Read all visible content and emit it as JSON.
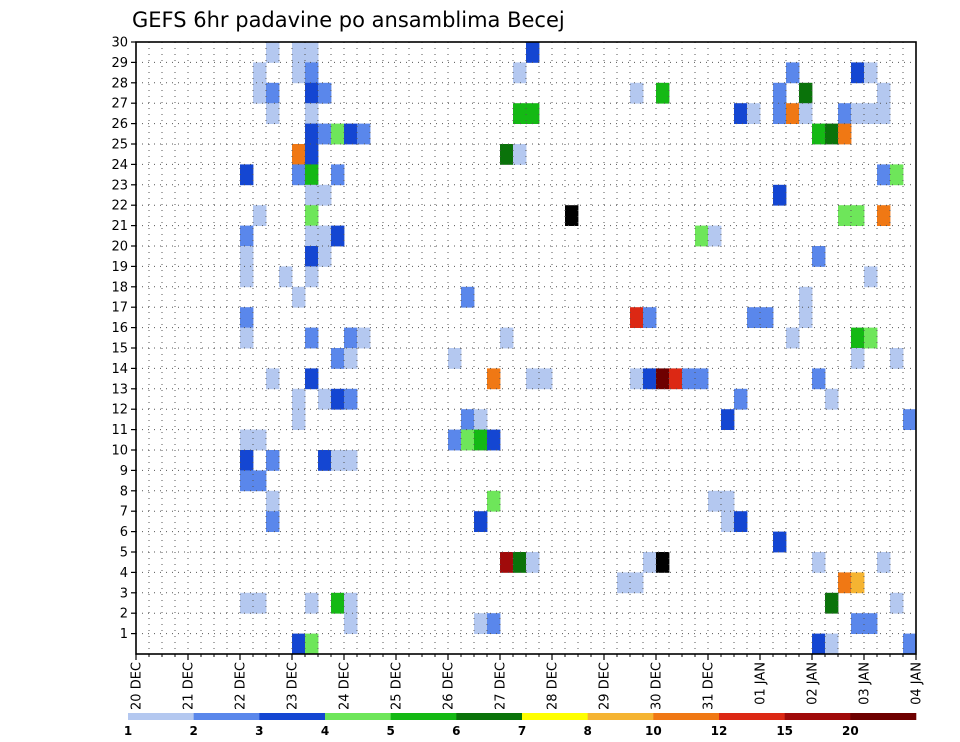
{
  "chart_data": {
    "type": "heatmap",
    "title": "GEFS 6hr padavine po ansamblima Becej",
    "x_tick_labels": [
      "20 DEC",
      "21 DEC",
      "22 DEC",
      "23 DEC",
      "24 DEC",
      "25 DEC",
      "26 DEC",
      "27 DEC",
      "28 DEC",
      "29 DEC",
      "30 DEC",
      "31 DEC",
      "01 JAN",
      "02 JAN",
      "03 JAN",
      "04 JAN"
    ],
    "y_tick_labels": [
      "1",
      "2",
      "3",
      "4",
      "5",
      "6",
      "7",
      "8",
      "9",
      "10",
      "11",
      "12",
      "13",
      "14",
      "15",
      "16",
      "17",
      "18",
      "19",
      "20",
      "21",
      "22",
      "23",
      "24",
      "25",
      "26",
      "27",
      "28",
      "29",
      "30"
    ],
    "xlim_steps": [
      0,
      60
    ],
    "ylim": [
      0,
      30
    ],
    "steps_per_day": 4,
    "grid": true,
    "legend": {
      "position": "bottom",
      "labels": [
        "1",
        "2",
        "3",
        "4",
        "5",
        "6",
        "7",
        "8",
        "10",
        "12",
        "15",
        "20"
      ],
      "colors": [
        "#b4c8f0",
        "#5a87eb",
        "#1446d2",
        "#6ee65a",
        "#14b914",
        "#0a730a",
        "#ffff00",
        "#f5b432",
        "#f07814",
        "#dc2814",
        "#a00a0a",
        "#6e0000"
      ]
    },
    "cells": [
      [
        10,
        30,
        1
      ],
      [
        12,
        30,
        1
      ],
      [
        13,
        30,
        1
      ],
      [
        30,
        30,
        3
      ],
      [
        9,
        29,
        1
      ],
      [
        12,
        29,
        1
      ],
      [
        13,
        29,
        2
      ],
      [
        29,
        29,
        1
      ],
      [
        50,
        29,
        2
      ],
      [
        55,
        29,
        3
      ],
      [
        56,
        29,
        1
      ],
      [
        9,
        28,
        1
      ],
      [
        10,
        28,
        2
      ],
      [
        13,
        28,
        3
      ],
      [
        14,
        28,
        2
      ],
      [
        38,
        28,
        1
      ],
      [
        40,
        28,
        5
      ],
      [
        49,
        28,
        2
      ],
      [
        51,
        28,
        6
      ],
      [
        57,
        28,
        1
      ],
      [
        10,
        27,
        1
      ],
      [
        13,
        27,
        1
      ],
      [
        29,
        27,
        5
      ],
      [
        30,
        27,
        5
      ],
      [
        46,
        27,
        3
      ],
      [
        47,
        27,
        1
      ],
      [
        49,
        27,
        2
      ],
      [
        50,
        27,
        9
      ],
      [
        51,
        27,
        1
      ],
      [
        54,
        27,
        2
      ],
      [
        55,
        27,
        1
      ],
      [
        56,
        27,
        1
      ],
      [
        57,
        27,
        1
      ],
      [
        13,
        26,
        3
      ],
      [
        14,
        26,
        2
      ],
      [
        15,
        26,
        4
      ],
      [
        16,
        26,
        3
      ],
      [
        17,
        26,
        2
      ],
      [
        52,
        26,
        5
      ],
      [
        53,
        26,
        6
      ],
      [
        54,
        26,
        9
      ],
      [
        12,
        25,
        9
      ],
      [
        13,
        25,
        3
      ],
      [
        28,
        25,
        6
      ],
      [
        29,
        25,
        1
      ],
      [
        8,
        24,
        3
      ],
      [
        12,
        24,
        2
      ],
      [
        13,
        24,
        5
      ],
      [
        15,
        24,
        2
      ],
      [
        57,
        24,
        2
      ],
      [
        58,
        24,
        4
      ],
      [
        13,
        23,
        1
      ],
      [
        14,
        23,
        1
      ],
      [
        49,
        23,
        3
      ],
      [
        9,
        22,
        1
      ],
      [
        13,
        22,
        4
      ],
      [
        33,
        22,
        13
      ],
      [
        54,
        22,
        4
      ],
      [
        55,
        22,
        4
      ],
      [
        57,
        22,
        9
      ],
      [
        8,
        21,
        2
      ],
      [
        13,
        21,
        1
      ],
      [
        14,
        21,
        1
      ],
      [
        15,
        21,
        3
      ],
      [
        43,
        21,
        4
      ],
      [
        44,
        21,
        1
      ],
      [
        8,
        20,
        1
      ],
      [
        13,
        20,
        3
      ],
      [
        14,
        20,
        1
      ],
      [
        52,
        20,
        2
      ],
      [
        8,
        19,
        1
      ],
      [
        11,
        19,
        1
      ],
      [
        13,
        19,
        1
      ],
      [
        56,
        19,
        1
      ],
      [
        12,
        18,
        1
      ],
      [
        25,
        18,
        2
      ],
      [
        51,
        18,
        1
      ],
      [
        8,
        17,
        2
      ],
      [
        38,
        17,
        10
      ],
      [
        39,
        17,
        2
      ],
      [
        47,
        17,
        2
      ],
      [
        48,
        17,
        2
      ],
      [
        51,
        17,
        1
      ],
      [
        8,
        16,
        1
      ],
      [
        13,
        16,
        2
      ],
      [
        16,
        16,
        2
      ],
      [
        17,
        16,
        1
      ],
      [
        28,
        16,
        1
      ],
      [
        50,
        16,
        1
      ],
      [
        55,
        16,
        5
      ],
      [
        56,
        16,
        4
      ],
      [
        15,
        15,
        2
      ],
      [
        16,
        15,
        1
      ],
      [
        24,
        15,
        1
      ],
      [
        55,
        15,
        1
      ],
      [
        58,
        15,
        1
      ],
      [
        10,
        14,
        1
      ],
      [
        13,
        14,
        3
      ],
      [
        27,
        14,
        9
      ],
      [
        30,
        14,
        1
      ],
      [
        31,
        14,
        1
      ],
      [
        38,
        14,
        1
      ],
      [
        39,
        14,
        3
      ],
      [
        40,
        14,
        12
      ],
      [
        41,
        14,
        10
      ],
      [
        42,
        14,
        2
      ],
      [
        43,
        14,
        2
      ],
      [
        52,
        14,
        2
      ],
      [
        12,
        13,
        1
      ],
      [
        14,
        13,
        1
      ],
      [
        15,
        13,
        3
      ],
      [
        16,
        13,
        2
      ],
      [
        46,
        13,
        2
      ],
      [
        53,
        13,
        1
      ],
      [
        12,
        12,
        1
      ],
      [
        25,
        12,
        2
      ],
      [
        26,
        12,
        1
      ],
      [
        45,
        12,
        3
      ],
      [
        59,
        12,
        2
      ],
      [
        8,
        11,
        1
      ],
      [
        9,
        11,
        1
      ],
      [
        24,
        11,
        2
      ],
      [
        25,
        11,
        4
      ],
      [
        26,
        11,
        5
      ],
      [
        27,
        11,
        3
      ],
      [
        8,
        10,
        3
      ],
      [
        10,
        10,
        2
      ],
      [
        14,
        10,
        3
      ],
      [
        15,
        10,
        1
      ],
      [
        16,
        10,
        1
      ],
      [
        8,
        9,
        2
      ],
      [
        9,
        9,
        2
      ],
      [
        10,
        8,
        1
      ],
      [
        27,
        8,
        4
      ],
      [
        44,
        8,
        1
      ],
      [
        45,
        8,
        1
      ],
      [
        10,
        7,
        2
      ],
      [
        26,
        7,
        3
      ],
      [
        45,
        7,
        1
      ],
      [
        46,
        7,
        3
      ],
      [
        49,
        6,
        3
      ],
      [
        28,
        5,
        11
      ],
      [
        29,
        5,
        6
      ],
      [
        30,
        5,
        1
      ],
      [
        39,
        5,
        1
      ],
      [
        40,
        5,
        13
      ],
      [
        52,
        5,
        1
      ],
      [
        57,
        5,
        1
      ],
      [
        37,
        4,
        1
      ],
      [
        38,
        4,
        1
      ],
      [
        54,
        4,
        9
      ],
      [
        55,
        4,
        8
      ],
      [
        60,
        4,
        4
      ],
      [
        8,
        3,
        1
      ],
      [
        9,
        3,
        1
      ],
      [
        13,
        3,
        1
      ],
      [
        15,
        3,
        5
      ],
      [
        16,
        3,
        1
      ],
      [
        53,
        3,
        6
      ],
      [
        58,
        3,
        1
      ],
      [
        16,
        2,
        1
      ],
      [
        26,
        2,
        1
      ],
      [
        27,
        2,
        2
      ],
      [
        55,
        2,
        2
      ],
      [
        56,
        2,
        2
      ],
      [
        12,
        1,
        3
      ],
      [
        13,
        1,
        4
      ],
      [
        52,
        1,
        3
      ],
      [
        53,
        1,
        1
      ],
      [
        59,
        1,
        2
      ]
    ]
  }
}
